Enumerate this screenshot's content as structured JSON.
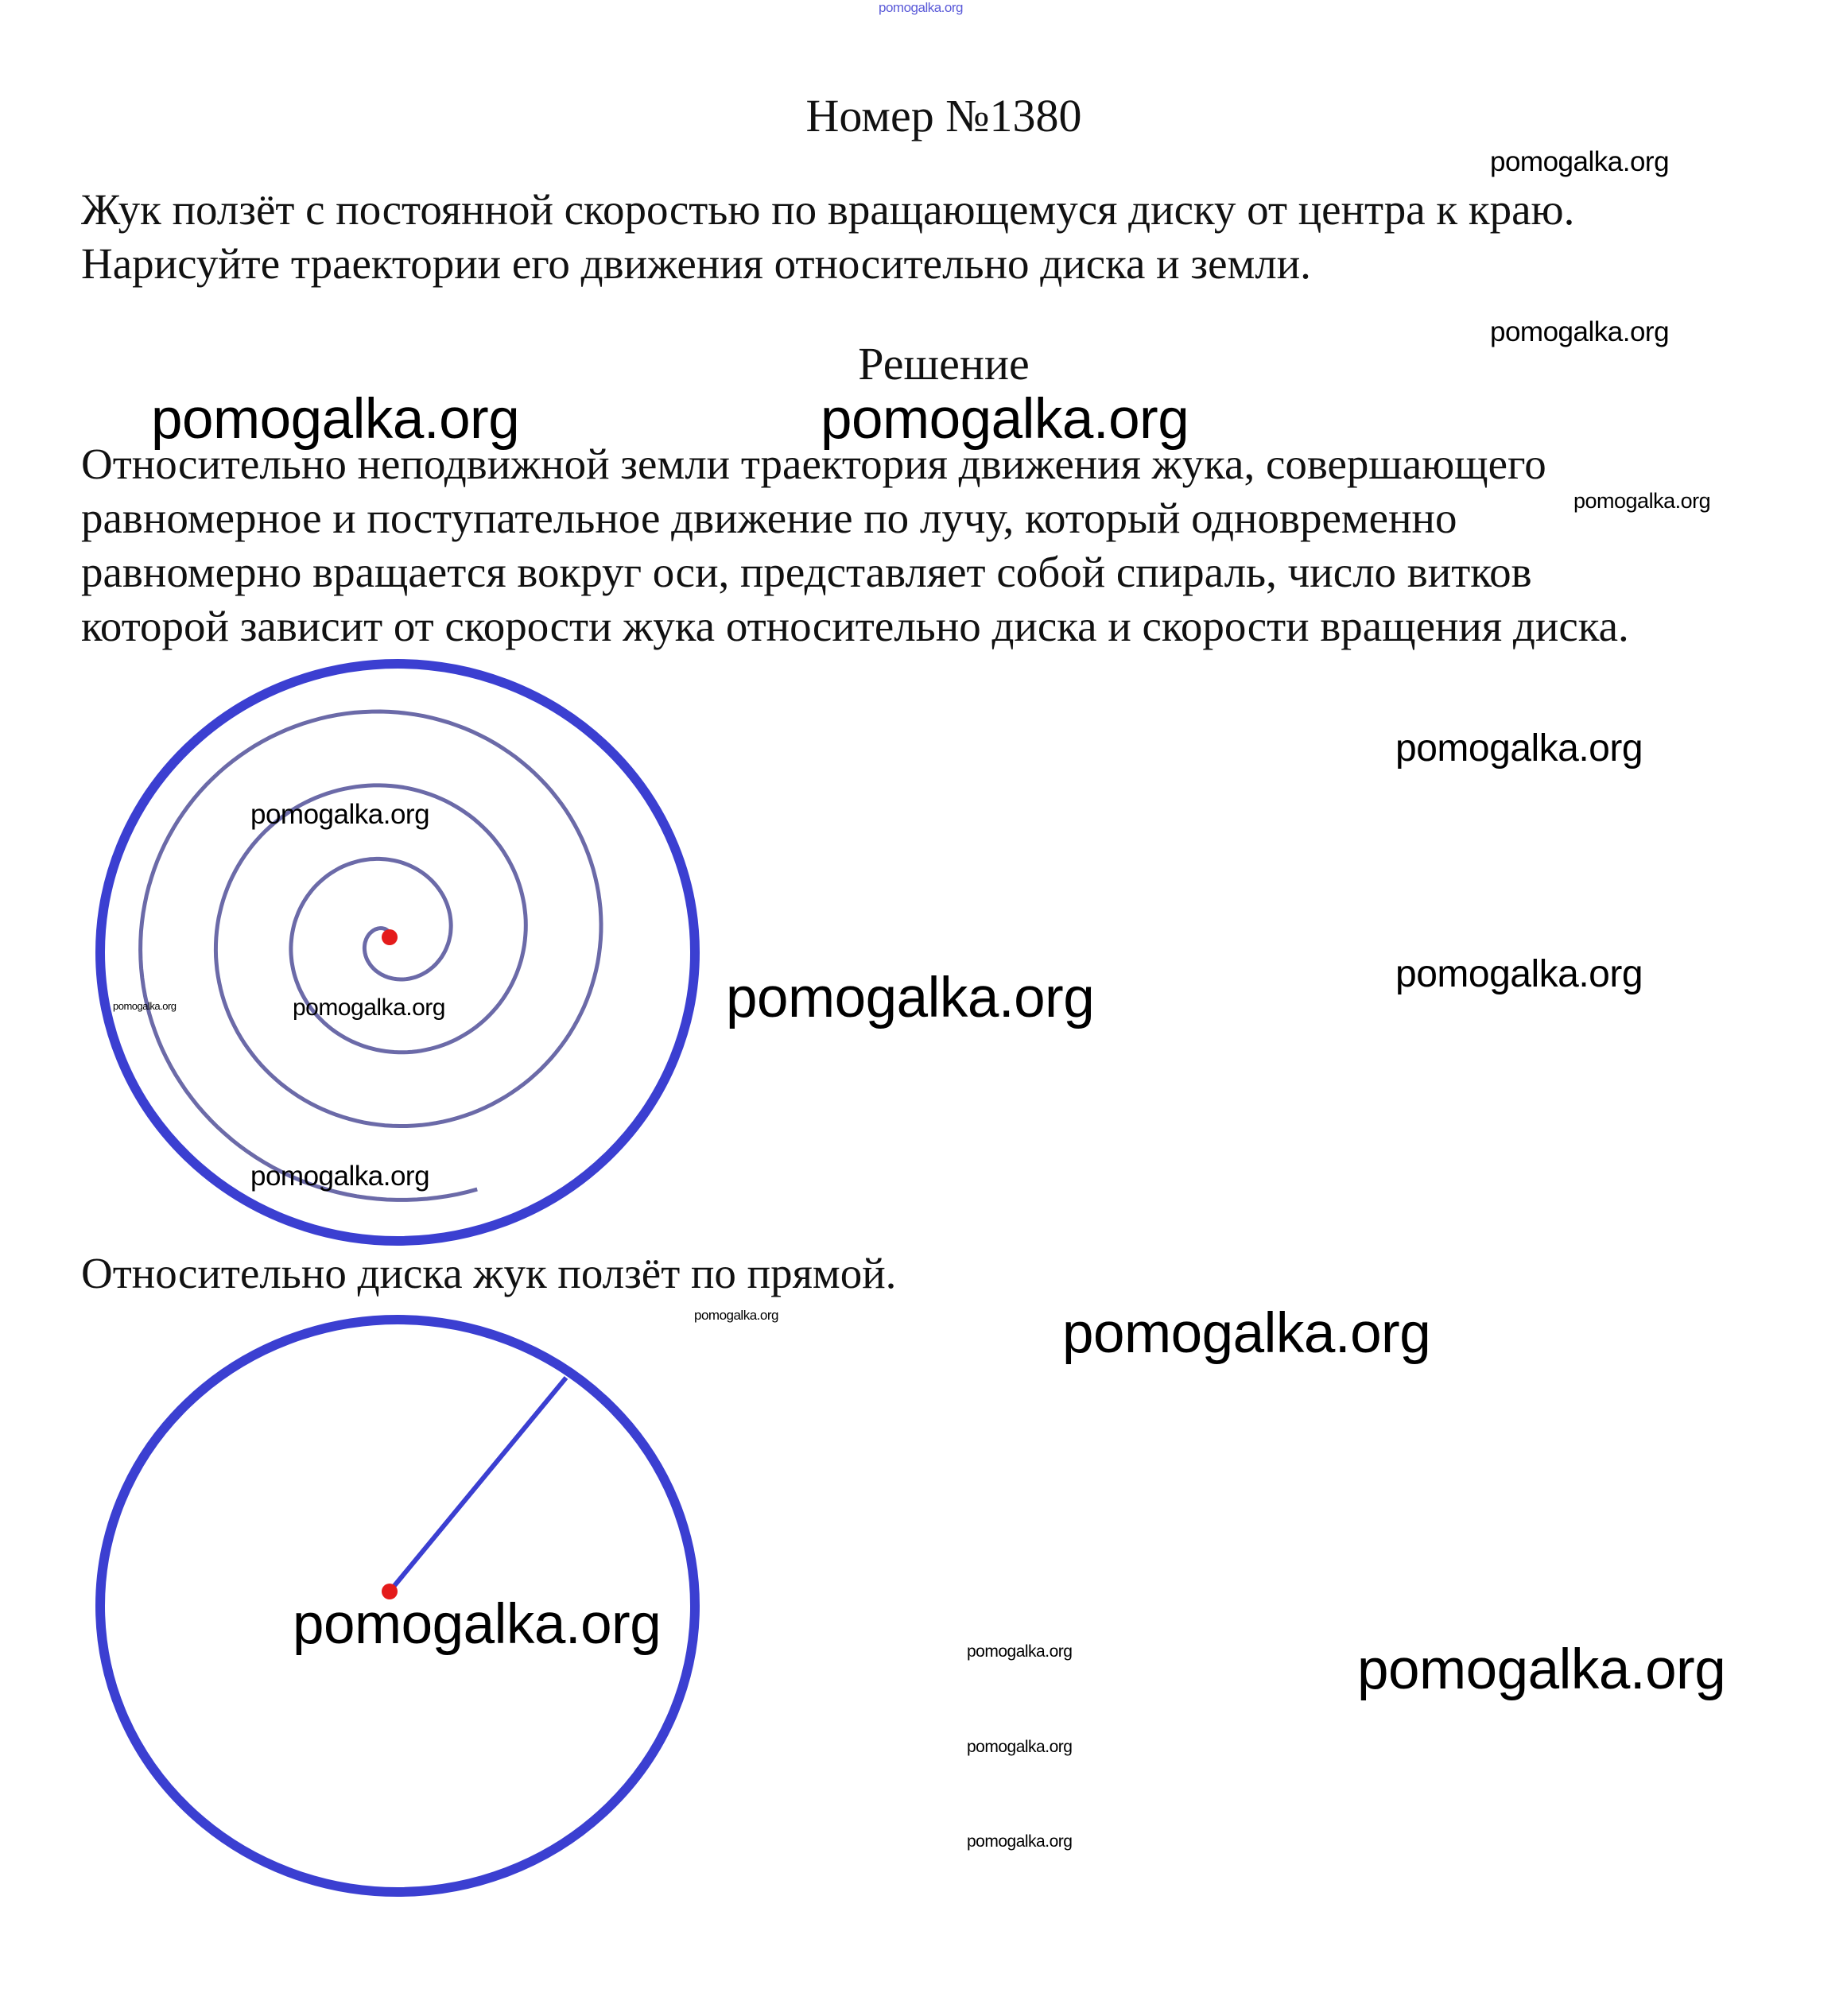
{
  "header_watermark": "pomogalka.org",
  "title": "Номер №1380",
  "problem": {
    "lines": [
      "Жук ползёт с постоянной скоростью по вращающемуся диску от центра к краю.",
      "Нарисуйте траектории его движения относительно диска и земли."
    ]
  },
  "solution_heading": "Решение",
  "solution": {
    "ground_lines": [
      "Относительно неподвижной земли траектория движения жука, совершающего",
      "равномерное и поступательное движение по лучу, который одновременно",
      "равномерно вращается вокруг оси, представляет собой спираль, число витков",
      "которой зависит от скорости жука относительно диска и скорости вращения диска."
    ],
    "disk_line": "Относительно диска жук ползёт по прямой."
  },
  "watermark_text": "pomogalka.org",
  "colors": {
    "disk": "#3b3fd1",
    "spiral": "#6b6aa8",
    "dot": "#e41b1b",
    "header_watermark": "#5a5ad8"
  }
}
